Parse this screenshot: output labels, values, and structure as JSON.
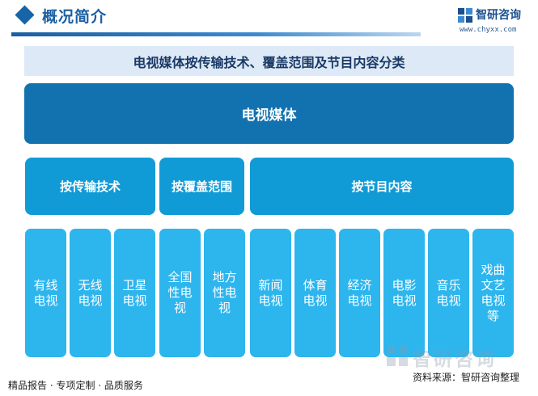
{
  "header": {
    "title": "概况简介",
    "logo_text": "智研咨询",
    "logo_url": "www.chyxx.com"
  },
  "diagram": {
    "title": "电视媒体按传输技术、覆盖范围及节目内容分类",
    "root": "电视媒体",
    "categories": [
      {
        "label": "按传输技术",
        "items": [
          "有线电视",
          "无线电视",
          "卫星电视"
        ]
      },
      {
        "label": "按覆盖范围",
        "items": [
          "全国性电视",
          "地方性电视"
        ]
      },
      {
        "label": "按节目内容",
        "items": [
          "新闻电视",
          "体育电视",
          "经济电视",
          "电影电视",
          "音乐电视",
          "戏曲文艺电视等"
        ]
      }
    ]
  },
  "footer": {
    "left": "精品报告 · 专项定制 · 品质服务",
    "watermark": "智研咨询",
    "source": "资料来源：智研咨询整理"
  },
  "colors": {
    "root": "#1272b0",
    "category": "#119bd6",
    "leaf": "#2db5ee",
    "title_bar": "#dde9f6"
  }
}
